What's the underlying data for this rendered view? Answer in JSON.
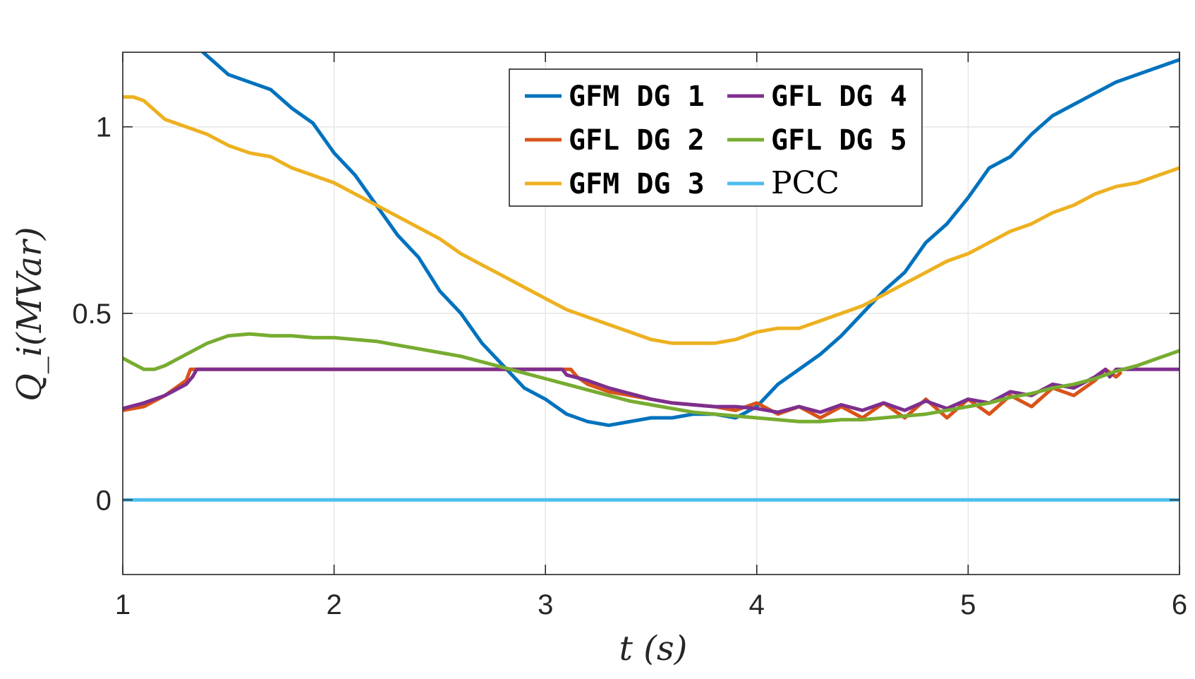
{
  "chart_data": {
    "type": "line",
    "title": "",
    "xlabel": "t (s)",
    "ylabel": "Q_i(MVar)",
    "xlim": [
      1,
      6
    ],
    "ylim": [
      -0.2,
      1.2
    ],
    "x_ticks": [
      1,
      2,
      3,
      4,
      5,
      6
    ],
    "x_tick_labels": [
      "1",
      "2",
      "3",
      "4",
      "5",
      "6"
    ],
    "y_ticks": [
      0,
      0.5,
      1
    ],
    "y_tick_labels": [
      "0",
      "0.5",
      "1"
    ],
    "grid": true,
    "legend_placement": "top-center",
    "series": [
      {
        "name": "GFM DG 1",
        "color": "#0072BD",
        "x": [
          1.38,
          1.5,
          1.6,
          1.7,
          1.8,
          1.9,
          2.0,
          2.1,
          2.2,
          2.3,
          2.4,
          2.5,
          2.6,
          2.7,
          2.8,
          2.9,
          3.0,
          3.1,
          3.2,
          3.3,
          3.4,
          3.5,
          3.6,
          3.7,
          3.8,
          3.9,
          4.0,
          4.1,
          4.2,
          4.3,
          4.4,
          4.5,
          4.6,
          4.7,
          4.8,
          4.9,
          5.0,
          5.1,
          5.2,
          5.3,
          5.4,
          5.5,
          5.6,
          5.7,
          5.8,
          5.9,
          6.0
        ],
        "y": [
          1.2,
          1.14,
          1.12,
          1.1,
          1.05,
          1.01,
          0.93,
          0.87,
          0.79,
          0.71,
          0.65,
          0.56,
          0.5,
          0.42,
          0.36,
          0.3,
          0.27,
          0.23,
          0.21,
          0.2,
          0.21,
          0.22,
          0.22,
          0.23,
          0.23,
          0.22,
          0.25,
          0.31,
          0.35,
          0.39,
          0.44,
          0.5,
          0.56,
          0.61,
          0.69,
          0.74,
          0.81,
          0.89,
          0.92,
          0.98,
          1.03,
          1.06,
          1.09,
          1.12,
          1.14,
          1.16,
          1.18
        ]
      },
      {
        "name": "GFL DG 2",
        "color": "#D95319",
        "x": [
          1.0,
          1.1,
          1.2,
          1.3,
          1.32,
          1.35,
          1.5,
          2.0,
          2.5,
          3.0,
          3.12,
          3.15,
          3.2,
          3.3,
          3.4,
          3.5,
          3.6,
          3.7,
          3.8,
          3.9,
          4.0,
          4.1,
          4.2,
          4.3,
          4.4,
          4.5,
          4.6,
          4.7,
          4.8,
          4.9,
          5.0,
          5.1,
          5.2,
          5.3,
          5.4,
          5.5,
          5.6,
          5.65,
          5.7,
          5.72
        ],
        "y": [
          0.24,
          0.25,
          0.28,
          0.32,
          0.35,
          0.35,
          0.35,
          0.35,
          0.35,
          0.35,
          0.35,
          0.33,
          0.31,
          0.29,
          0.28,
          0.27,
          0.26,
          0.255,
          0.25,
          0.24,
          0.26,
          0.23,
          0.25,
          0.22,
          0.25,
          0.22,
          0.26,
          0.22,
          0.27,
          0.22,
          0.27,
          0.23,
          0.28,
          0.25,
          0.3,
          0.28,
          0.32,
          0.35,
          0.33,
          0.34
        ]
      },
      {
        "name": "GFM DG 3",
        "color": "#EDB120",
        "x": [
          1.0,
          1.05,
          1.1,
          1.2,
          1.3,
          1.4,
          1.5,
          1.6,
          1.7,
          1.8,
          1.9,
          2.0,
          2.1,
          2.2,
          2.3,
          2.4,
          2.5,
          2.6,
          2.7,
          2.8,
          2.9,
          3.0,
          3.1,
          3.2,
          3.3,
          3.4,
          3.5,
          3.6,
          3.7,
          3.8,
          3.9,
          4.0,
          4.1,
          4.2,
          4.3,
          4.4,
          4.5,
          4.6,
          4.7,
          4.8,
          4.9,
          5.0,
          5.1,
          5.2,
          5.3,
          5.4,
          5.5,
          5.6,
          5.7,
          5.8,
          5.9,
          6.0
        ],
        "y": [
          1.08,
          1.08,
          1.07,
          1.02,
          1.0,
          0.98,
          0.95,
          0.93,
          0.92,
          0.89,
          0.87,
          0.85,
          0.82,
          0.79,
          0.76,
          0.73,
          0.7,
          0.66,
          0.63,
          0.6,
          0.57,
          0.54,
          0.51,
          0.49,
          0.47,
          0.45,
          0.43,
          0.42,
          0.42,
          0.42,
          0.43,
          0.45,
          0.46,
          0.46,
          0.48,
          0.5,
          0.52,
          0.55,
          0.58,
          0.61,
          0.64,
          0.66,
          0.69,
          0.72,
          0.74,
          0.77,
          0.79,
          0.82,
          0.84,
          0.85,
          0.87,
          0.89
        ]
      },
      {
        "name": "GFL DG 4",
        "color": "#7E2F8E",
        "x": [
          1.0,
          1.1,
          1.2,
          1.3,
          1.33,
          1.35,
          1.5,
          2.0,
          2.5,
          3.0,
          3.08,
          3.1,
          3.2,
          3.3,
          3.4,
          3.5,
          3.6,
          3.7,
          3.8,
          3.9,
          4.0,
          4.1,
          4.2,
          4.3,
          4.4,
          4.5,
          4.6,
          4.7,
          4.8,
          4.9,
          5.0,
          5.1,
          5.2,
          5.3,
          5.4,
          5.5,
          5.6,
          5.65,
          5.67,
          5.7,
          5.8,
          5.9,
          6.0
        ],
        "y": [
          0.245,
          0.26,
          0.28,
          0.31,
          0.33,
          0.35,
          0.35,
          0.35,
          0.35,
          0.35,
          0.35,
          0.335,
          0.32,
          0.3,
          0.285,
          0.27,
          0.26,
          0.255,
          0.25,
          0.25,
          0.245,
          0.235,
          0.25,
          0.235,
          0.255,
          0.24,
          0.26,
          0.24,
          0.265,
          0.245,
          0.27,
          0.26,
          0.29,
          0.28,
          0.31,
          0.3,
          0.33,
          0.35,
          0.33,
          0.35,
          0.35,
          0.35,
          0.35
        ]
      },
      {
        "name": "GFL DG 5",
        "color": "#77AC30",
        "x": [
          1.0,
          1.05,
          1.1,
          1.15,
          1.2,
          1.3,
          1.4,
          1.5,
          1.6,
          1.7,
          1.8,
          1.9,
          2.0,
          2.1,
          2.2,
          2.3,
          2.4,
          2.5,
          2.6,
          2.7,
          2.8,
          2.9,
          3.0,
          3.1,
          3.2,
          3.3,
          3.4,
          3.5,
          3.6,
          3.7,
          3.8,
          3.9,
          4.0,
          4.1,
          4.2,
          4.3,
          4.4,
          4.5,
          4.6,
          4.7,
          4.8,
          4.9,
          5.0,
          5.1,
          5.2,
          5.3,
          5.4,
          5.5,
          5.6,
          5.7,
          5.8,
          5.9,
          6.0
        ],
        "y": [
          0.38,
          0.365,
          0.35,
          0.35,
          0.36,
          0.39,
          0.42,
          0.44,
          0.445,
          0.44,
          0.44,
          0.435,
          0.435,
          0.43,
          0.425,
          0.415,
          0.405,
          0.395,
          0.385,
          0.37,
          0.355,
          0.34,
          0.325,
          0.31,
          0.295,
          0.28,
          0.265,
          0.255,
          0.245,
          0.235,
          0.23,
          0.225,
          0.22,
          0.215,
          0.21,
          0.21,
          0.215,
          0.215,
          0.22,
          0.225,
          0.23,
          0.24,
          0.25,
          0.26,
          0.275,
          0.285,
          0.3,
          0.31,
          0.325,
          0.345,
          0.36,
          0.38,
          0.4
        ]
      },
      {
        "name": "PCC",
        "color": "#4DBEEE",
        "x": [
          1.0,
          6.0
        ],
        "y": [
          0.0,
          0.0
        ]
      }
    ]
  }
}
